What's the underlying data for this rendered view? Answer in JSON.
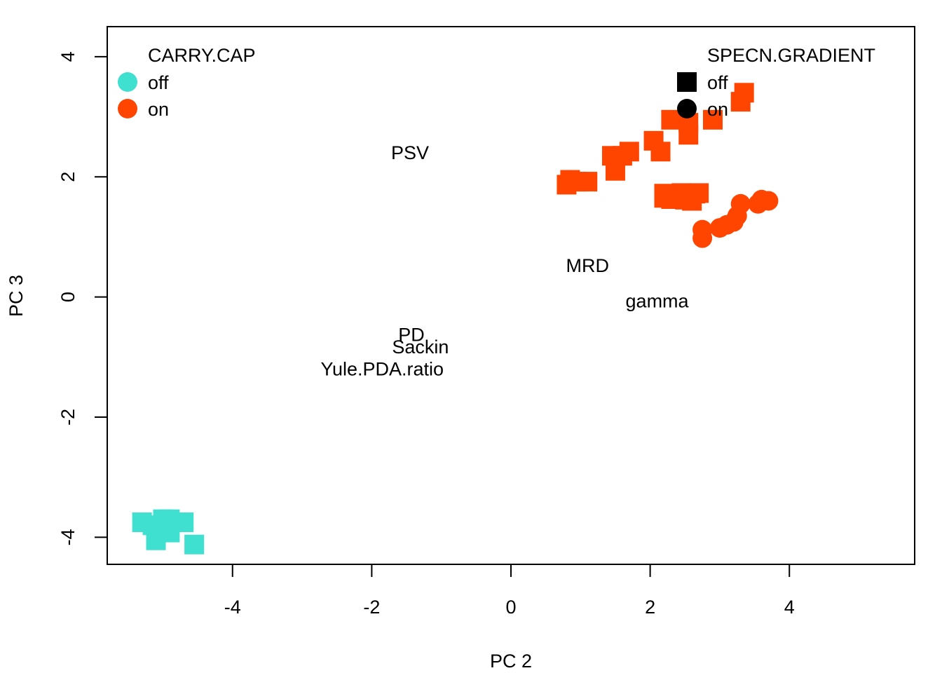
{
  "chart_data": {
    "type": "scatter",
    "xlabel": "PC 2",
    "ylabel": "PC 3",
    "xlim": [
      -5.8,
      5.8
    ],
    "ylim": [
      -4.45,
      4.5
    ],
    "xticks": [
      -4,
      -2,
      0,
      2,
      4
    ],
    "yticks": [
      -4,
      -2,
      0,
      2,
      4
    ],
    "grid": false,
    "legends": [
      {
        "title": "CARRY.CAP",
        "placement": "top-left",
        "entries": [
          {
            "label": "off",
            "color": "#40E0D0",
            "shape": "circle"
          },
          {
            "label": "on",
            "color": "#FF4500",
            "shape": "circle"
          }
        ]
      },
      {
        "title": "SPECN.GRADIENT",
        "placement": "top-right",
        "entries": [
          {
            "label": "off",
            "color": "#000000",
            "shape": "square"
          },
          {
            "label": "on",
            "color": "#000000",
            "shape": "circle"
          }
        ]
      }
    ],
    "variable_labels": [
      {
        "text": "PSV",
        "x": -1.45,
        "y": 2.4
      },
      {
        "text": "MRD",
        "x": 1.1,
        "y": 0.52
      },
      {
        "text": "gamma",
        "x": 2.1,
        "y": -0.07
      },
      {
        "text": "PD",
        "x": -1.43,
        "y": -0.63
      },
      {
        "text": "Sackin",
        "x": -1.3,
        "y": -0.83
      },
      {
        "text": "Yule.PDA.ratio",
        "x": -1.85,
        "y": -1.2
      }
    ],
    "series": [
      {
        "carry_cap": "on",
        "specn_gradient": "off",
        "color": "#FF4500",
        "shape": "square",
        "points": [
          [
            3.35,
            3.4
          ],
          [
            3.3,
            3.25
          ],
          [
            2.9,
            2.95
          ],
          [
            2.3,
            2.95
          ],
          [
            2.55,
            2.9
          ],
          [
            2.55,
            2.7
          ],
          [
            2.05,
            2.6
          ],
          [
            2.15,
            2.42
          ],
          [
            1.7,
            2.42
          ],
          [
            1.6,
            2.35
          ],
          [
            1.45,
            2.35
          ],
          [
            1.5,
            2.1
          ],
          [
            0.85,
            1.95
          ],
          [
            0.95,
            1.92
          ],
          [
            1.1,
            1.92
          ],
          [
            0.8,
            1.87
          ],
          [
            2.2,
            1.72
          ],
          [
            2.45,
            1.73
          ],
          [
            2.65,
            1.72
          ],
          [
            2.7,
            1.73
          ],
          [
            2.2,
            1.65
          ],
          [
            2.3,
            1.63
          ],
          [
            2.5,
            1.62
          ],
          [
            2.6,
            1.6
          ]
        ]
      },
      {
        "carry_cap": "on",
        "specn_gradient": "on",
        "color": "#FF4500",
        "shape": "circle",
        "points": [
          [
            3.7,
            1.6
          ],
          [
            3.6,
            1.62
          ],
          [
            3.55,
            1.55
          ],
          [
            3.3,
            1.55
          ],
          [
            3.25,
            1.35
          ],
          [
            3.2,
            1.25
          ],
          [
            3.1,
            1.2
          ],
          [
            3.0,
            1.15
          ],
          [
            2.75,
            1.12
          ],
          [
            2.75,
            0.98
          ]
        ]
      },
      {
        "carry_cap": "off",
        "specn_gradient": "off",
        "color": "#40E0D0",
        "shape": "square",
        "points": [
          [
            -5.3,
            -3.75
          ],
          [
            -5.15,
            -3.8
          ],
          [
            -5.0,
            -3.7
          ],
          [
            -4.9,
            -3.7
          ],
          [
            -4.7,
            -3.75
          ],
          [
            -5.05,
            -3.9
          ],
          [
            -4.9,
            -3.92
          ],
          [
            -5.1,
            -4.05
          ],
          [
            -4.55,
            -4.12
          ]
        ]
      }
    ]
  }
}
